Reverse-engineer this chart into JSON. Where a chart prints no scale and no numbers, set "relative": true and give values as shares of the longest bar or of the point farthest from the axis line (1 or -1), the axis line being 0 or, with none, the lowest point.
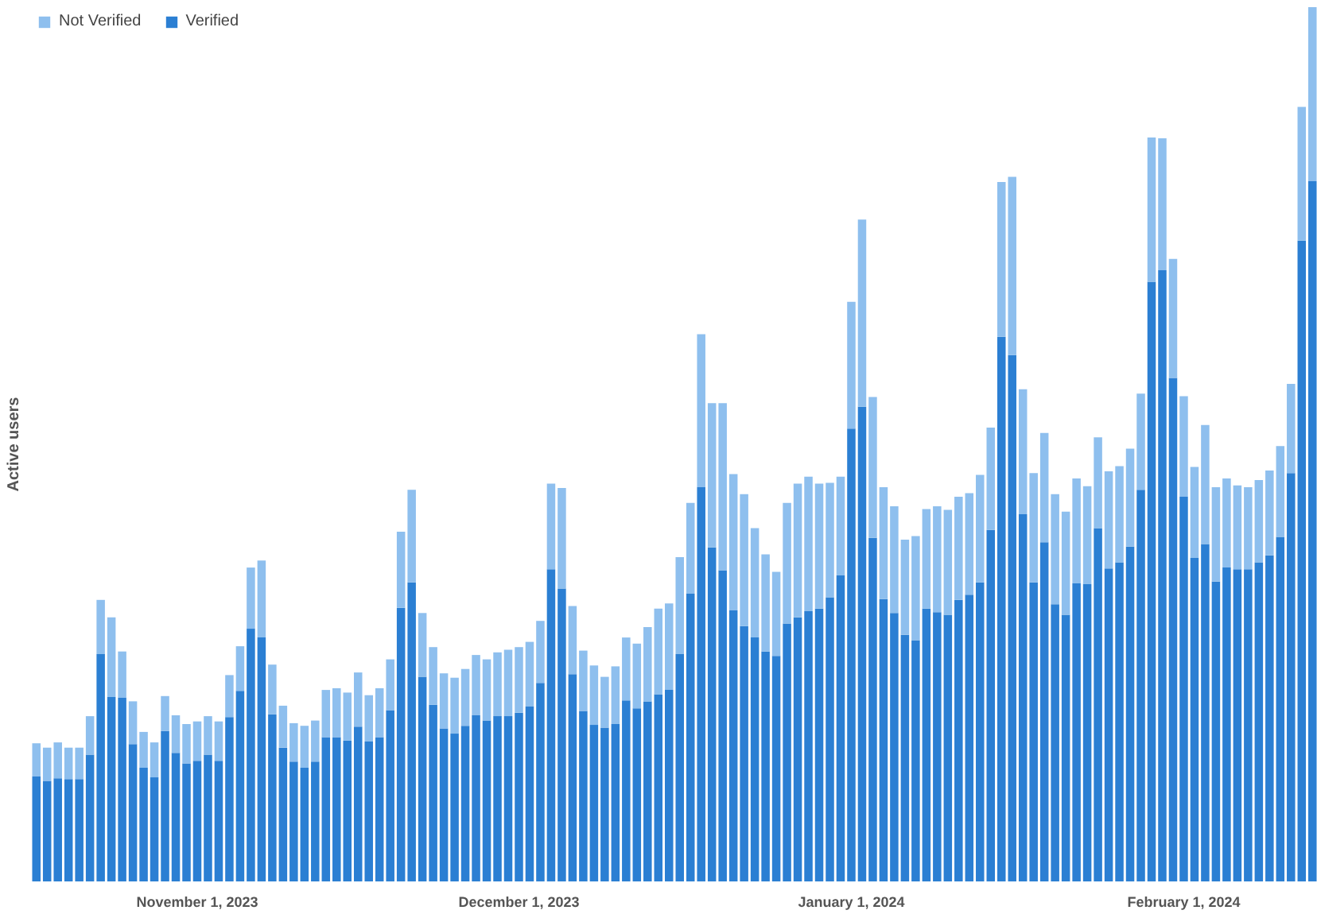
{
  "chart_data": {
    "type": "bar",
    "stacked": true,
    "relative": true,
    "ylabel": "Active users",
    "legend": "top left",
    "grid": false,
    "x": [
      "2023-10-17",
      "2023-10-18",
      "2023-10-19",
      "2023-10-20",
      "2023-10-21",
      "2023-10-22",
      "2023-10-23",
      "2023-10-24",
      "2023-10-25",
      "2023-10-26",
      "2023-10-27",
      "2023-10-28",
      "2023-10-29",
      "2023-10-30",
      "2023-10-31",
      "2023-11-01",
      "2023-11-02",
      "2023-11-03",
      "2023-11-04",
      "2023-11-05",
      "2023-11-06",
      "2023-11-07",
      "2023-11-08",
      "2023-11-09",
      "2023-11-10",
      "2023-11-11",
      "2023-11-12",
      "2023-11-13",
      "2023-11-14",
      "2023-11-15",
      "2023-11-16",
      "2023-11-17",
      "2023-11-18",
      "2023-11-19",
      "2023-11-20",
      "2023-11-21",
      "2023-11-22",
      "2023-11-23",
      "2023-11-24",
      "2023-11-25",
      "2023-11-26",
      "2023-11-27",
      "2023-11-28",
      "2023-11-29",
      "2023-11-30",
      "2023-12-01",
      "2023-12-02",
      "2023-12-03",
      "2023-12-04",
      "2023-12-05",
      "2023-12-06",
      "2023-12-07",
      "2023-12-08",
      "2023-12-09",
      "2023-12-10",
      "2023-12-11",
      "2023-12-12",
      "2023-12-13",
      "2023-12-14",
      "2023-12-15",
      "2023-12-16",
      "2023-12-17",
      "2023-12-18",
      "2023-12-19",
      "2023-12-20",
      "2023-12-21",
      "2023-12-22",
      "2023-12-23",
      "2023-12-24",
      "2023-12-25",
      "2023-12-26",
      "2023-12-27",
      "2023-12-28",
      "2023-12-29",
      "2023-12-30",
      "2023-12-31",
      "2024-01-01",
      "2024-01-02",
      "2024-01-03",
      "2024-01-04",
      "2024-01-05",
      "2024-01-06",
      "2024-01-07",
      "2024-01-08",
      "2024-01-09",
      "2024-01-10",
      "2024-01-11",
      "2024-01-12",
      "2024-01-13",
      "2024-01-14",
      "2024-01-15",
      "2024-01-16",
      "2024-01-17",
      "2024-01-18",
      "2024-01-19",
      "2024-01-20",
      "2024-01-21",
      "2024-01-22",
      "2024-01-23",
      "2024-01-24",
      "2024-01-25",
      "2024-01-26",
      "2024-01-27",
      "2024-01-28",
      "2024-01-29",
      "2024-01-30",
      "2024-01-31",
      "2024-02-01",
      "2024-02-02",
      "2024-02-03",
      "2024-02-04",
      "2024-02-05",
      "2024-02-06",
      "2024-02-07",
      "2024-02-08",
      "2024-02-09",
      "2024-02-10",
      "2024-02-11",
      "2024-02-12",
      "2024-02-13"
    ],
    "xlim": [
      "2023-10-16T12:00",
      "2024-02-13T12:00"
    ],
    "xticks": [
      {
        "value": "2023-11-01",
        "label": "November 1, 2023"
      },
      {
        "value": "2023-12-01",
        "label": "December 1, 2023"
      },
      {
        "value": "2024-01-01",
        "label": "January 1, 2024"
      },
      {
        "value": "2024-02-01",
        "label": "February 1, 2024"
      }
    ],
    "series": [
      {
        "name": "Verified",
        "color": "#2b7fd3",
        "values": [
          0.12,
          0.115,
          0.118,
          0.117,
          0.117,
          0.145,
          0.26,
          0.211,
          0.21,
          0.157,
          0.13,
          0.119,
          0.172,
          0.147,
          0.135,
          0.138,
          0.145,
          0.138,
          0.188,
          0.218,
          0.289,
          0.279,
          0.191,
          0.153,
          0.137,
          0.13,
          0.137,
          0.165,
          0.165,
          0.161,
          0.177,
          0.16,
          0.165,
          0.196,
          0.313,
          0.342,
          0.234,
          0.202,
          0.175,
          0.169,
          0.178,
          0.19,
          0.184,
          0.189,
          0.189,
          0.193,
          0.2,
          0.227,
          0.357,
          0.335,
          0.237,
          0.195,
          0.179,
          0.176,
          0.18,
          0.207,
          0.198,
          0.206,
          0.214,
          0.219,
          0.26,
          0.329,
          0.451,
          0.382,
          0.356,
          0.31,
          0.292,
          0.279,
          0.263,
          0.258,
          0.295,
          0.302,
          0.309,
          0.312,
          0.325,
          0.35,
          0.518,
          0.543,
          0.393,
          0.323,
          0.307,
          0.282,
          0.276,
          0.312,
          0.308,
          0.305,
          0.322,
          0.328,
          0.342,
          0.402,
          0.623,
          0.602,
          0.42,
          0.342,
          0.388,
          0.317,
          0.305,
          0.341,
          0.34,
          0.404,
          0.358,
          0.365,
          0.383,
          0.448,
          0.686,
          0.699,
          0.576,
          0.44,
          0.37,
          0.386,
          0.343,
          0.359,
          0.357,
          0.357,
          0.365,
          0.373,
          0.394,
          0.467,
          0.733,
          0.801
        ]
      },
      {
        "name": "Not Verified",
        "color": "#8ebfee",
        "values": [
          0.038,
          0.038,
          0.041,
          0.036,
          0.036,
          0.044,
          0.062,
          0.091,
          0.053,
          0.049,
          0.041,
          0.04,
          0.04,
          0.043,
          0.045,
          0.045,
          0.044,
          0.045,
          0.048,
          0.051,
          0.07,
          0.088,
          0.057,
          0.048,
          0.044,
          0.048,
          0.047,
          0.054,
          0.056,
          0.055,
          0.062,
          0.053,
          0.056,
          0.058,
          0.087,
          0.106,
          0.073,
          0.066,
          0.063,
          0.064,
          0.065,
          0.069,
          0.07,
          0.073,
          0.076,
          0.075,
          0.074,
          0.071,
          0.098,
          0.115,
          0.078,
          0.069,
          0.068,
          0.058,
          0.066,
          0.072,
          0.074,
          0.085,
          0.098,
          0.099,
          0.111,
          0.104,
          0.175,
          0.165,
          0.191,
          0.156,
          0.151,
          0.125,
          0.111,
          0.096,
          0.138,
          0.153,
          0.154,
          0.143,
          0.131,
          0.113,
          0.145,
          0.214,
          0.161,
          0.128,
          0.122,
          0.109,
          0.119,
          0.114,
          0.121,
          0.12,
          0.118,
          0.116,
          0.123,
          0.117,
          0.177,
          0.204,
          0.143,
          0.125,
          0.125,
          0.126,
          0.118,
          0.12,
          0.112,
          0.104,
          0.111,
          0.11,
          0.112,
          0.11,
          0.165,
          0.151,
          0.136,
          0.115,
          0.104,
          0.136,
          0.108,
          0.102,
          0.096,
          0.094,
          0.094,
          0.097,
          0.104,
          0.102,
          0.153,
          0.199
        ]
      }
    ]
  }
}
